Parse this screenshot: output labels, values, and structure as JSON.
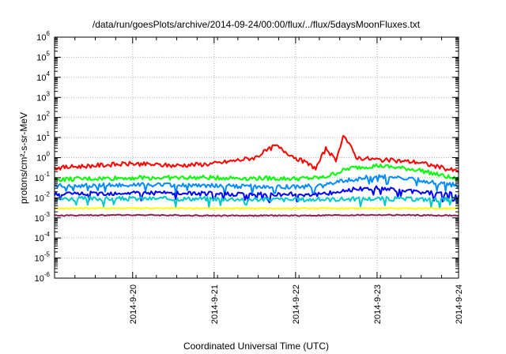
{
  "chart_data": {
    "type": "line",
    "title": "/data/run/goesPlots/archive/2014-09-24/00:00/flux/../flux/5daysMoonFluxes.txt",
    "xlabel": "Coordinated Universal Time (UTC)",
    "ylabel": "protons/cm²-s-sr-MeV",
    "x_ticks": [
      "2014-9-20",
      "2014-9-21",
      "2014-9-22",
      "2014-9-23",
      "2014-9-24"
    ],
    "x_range": [
      "2014-09-19 01:00",
      "2014-09-24 00:00"
    ],
    "y_scale": "log",
    "ylim": [
      1e-06,
      1000000.0
    ],
    "y_ticks": [
      {
        "base": "10",
        "exp": "-6"
      },
      {
        "base": "10",
        "exp": "-5"
      },
      {
        "base": "10",
        "exp": "-4"
      },
      {
        "base": "10",
        "exp": "-3"
      },
      {
        "base": "10",
        "exp": "-2"
      },
      {
        "base": "10",
        "exp": "-1"
      },
      {
        "base": "10",
        "exp": "0"
      },
      {
        "base": "10",
        "exp": "1"
      },
      {
        "base": "10",
        "exp": "2"
      },
      {
        "base": "10",
        "exp": "3"
      },
      {
        "base": "10",
        "exp": "4"
      },
      {
        "base": "10",
        "exp": "5"
      },
      {
        "base": "10",
        "exp": "6"
      }
    ],
    "grid": true,
    "series": [
      {
        "color": "#ff0000",
        "x": [
          "2014-09-19 00:00",
          "2014-09-19 12:00",
          "2014-09-20 00:00",
          "2014-09-20 12:00",
          "2014-09-21 00:00",
          "2014-09-21 12:00",
          "2014-09-21 18:00",
          "2014-09-22 00:00",
          "2014-09-22 06:00",
          "2014-09-22 09:00",
          "2014-09-22 12:00",
          "2014-09-22 14:00",
          "2014-09-22 18:00",
          "2014-09-23 00:00",
          "2014-09-23 12:00",
          "2014-09-24 00:00"
        ],
        "y": [
          0.3,
          0.4,
          0.5,
          0.4,
          0.5,
          1.0,
          4.0,
          1.0,
          0.3,
          3.0,
          0.6,
          15.0,
          1.0,
          0.8,
          0.6,
          0.2
        ]
      },
      {
        "color": "#00ff00",
        "x": [
          "2014-09-19 00:00",
          "2014-09-20 00:00",
          "2014-09-21 00:00",
          "2014-09-22 00:00",
          "2014-09-22 08:00",
          "2014-09-22 16:00",
          "2014-09-23 00:00",
          "2014-09-23 12:00",
          "2014-09-24 00:00"
        ],
        "y": [
          0.08,
          0.1,
          0.1,
          0.09,
          0.1,
          0.3,
          0.4,
          0.25,
          0.08
        ]
      },
      {
        "color": "#008cff",
        "x": [
          "2014-09-19 00:00",
          "2014-09-20 00:00",
          "2014-09-21 00:00",
          "2014-09-22 00:00",
          "2014-09-22 08:00",
          "2014-09-22 16:00",
          "2014-09-23 00:00",
          "2014-09-23 12:00",
          "2014-09-24 00:00"
        ],
        "y": [
          0.04,
          0.045,
          0.04,
          0.035,
          0.04,
          0.08,
          0.12,
          0.08,
          0.04
        ]
      },
      {
        "color": "#0000ff",
        "x": [
          "2014-09-19 00:00",
          "2014-09-20 00:00",
          "2014-09-21 00:00",
          "2014-09-22 00:00",
          "2014-09-22 08:00",
          "2014-09-22 16:00",
          "2014-09-23 00:00",
          "2014-09-23 12:00",
          "2014-09-24 00:00"
        ],
        "y": [
          0.015,
          0.018,
          0.016,
          0.015,
          0.015,
          0.025,
          0.03,
          0.02,
          0.015
        ]
      },
      {
        "color": "#00c8c8",
        "x": [
          "2014-09-19 00:00",
          "2014-09-20 00:00",
          "2014-09-21 00:00",
          "2014-09-22 00:00",
          "2014-09-23 00:00",
          "2014-09-24 00:00"
        ],
        "y": [
          0.009,
          0.009,
          0.009,
          0.008,
          0.009,
          0.008
        ]
      },
      {
        "color": "#ffff00",
        "x": [
          "2014-09-19 00:00",
          "2014-09-20 00:00",
          "2014-09-21 00:00",
          "2014-09-22 00:00",
          "2014-09-23 00:00",
          "2014-09-24 00:00"
        ],
        "y": [
          0.003,
          0.003,
          0.003,
          0.003,
          0.003,
          0.003
        ]
      },
      {
        "color": "#8b2252",
        "x": [
          "2014-09-19 00:00",
          "2014-09-20 00:00",
          "2014-09-21 00:00",
          "2014-09-22 00:00",
          "2014-09-23 00:00",
          "2014-09-24 00:00"
        ],
        "y": [
          0.0013,
          0.0014,
          0.0013,
          0.0013,
          0.0014,
          0.0013
        ]
      }
    ]
  }
}
